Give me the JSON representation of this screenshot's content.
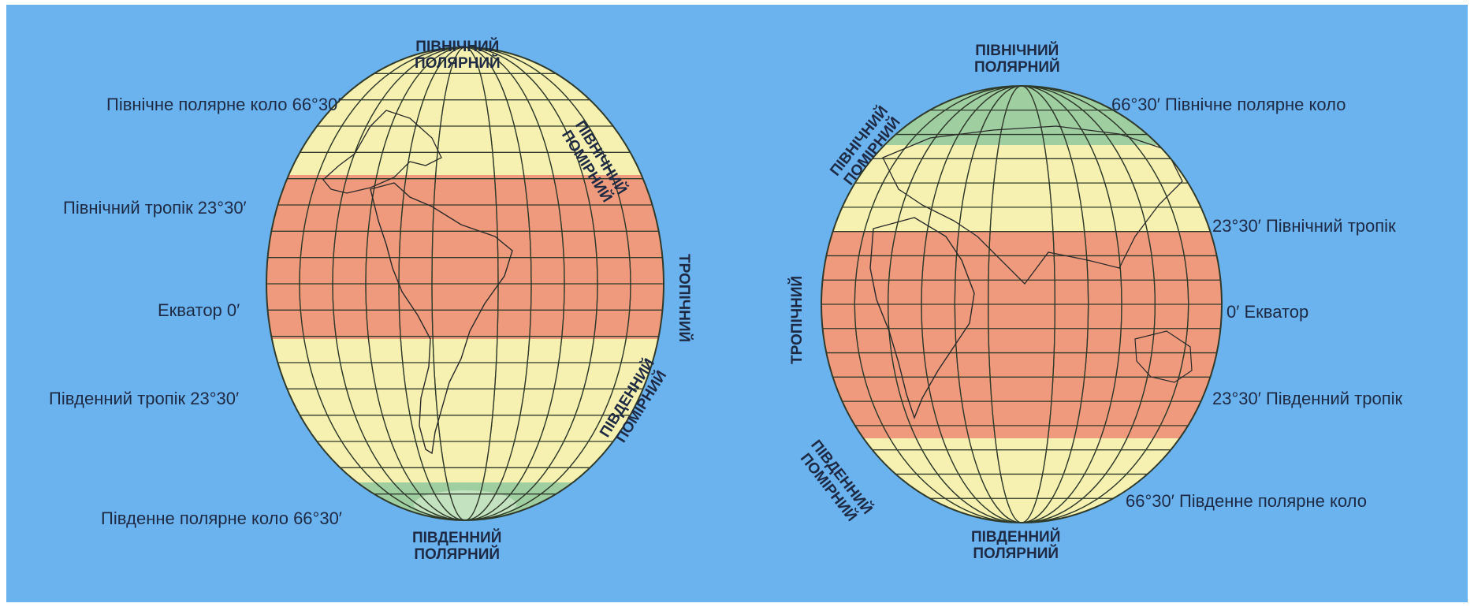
{
  "colors": {
    "background": "#6bb3ef",
    "temperate": "#f6f1b0",
    "tropical": "#ef9a7c",
    "polar": "#9fcea0",
    "grid": "#2f3a2a",
    "text": "#1e2a44"
  },
  "left_globe": {
    "lines": {
      "north_polar_circle": "Північне полярне коло  66°30′",
      "north_tropic": "Північний тропік  23°30′",
      "equator": "Екватор  0′",
      "south_tropic": "Південний тропік  23°30′",
      "south_polar_circle": "Південне полярне коло  66°30′"
    },
    "zones": {
      "north_polar": "ПІВНІЧНИЙ\nПОЛЯРНИЙ",
      "north_temperate": "ПІВНІЧНИЙ\nПОМІРНИЙ",
      "tropical": "ТРОПІЧНИЙ",
      "south_temperate": "ПІВДЕННИЙ\nПОМІРНИЙ",
      "south_polar": "ПІВДЕННИЙ\nПОЛЯРНИЙ"
    }
  },
  "right_globe": {
    "lines": {
      "north_polar_circle": "66°30′   Північне полярне коло",
      "north_tropic": "23°30′  Північний тропік",
      "equator": "0′  Екватор",
      "south_tropic": "23°30′  Південний тропік",
      "south_polar_circle": "66°30′  Південне полярне коло"
    },
    "zones": {
      "north_polar": "ПІВНІЧНИЙ\nПОЛЯРНИЙ",
      "north_temperate": "ПІВНІЧНИЙ\nПОМІРНИЙ",
      "tropical": "ТРОПІЧНИЙ",
      "south_temperate": "ПІВДЕННИЙ\nПОМІРНИЙ",
      "south_polar": "ПІВДЕННИЙ\nПОЛЯРНИЙ"
    }
  }
}
